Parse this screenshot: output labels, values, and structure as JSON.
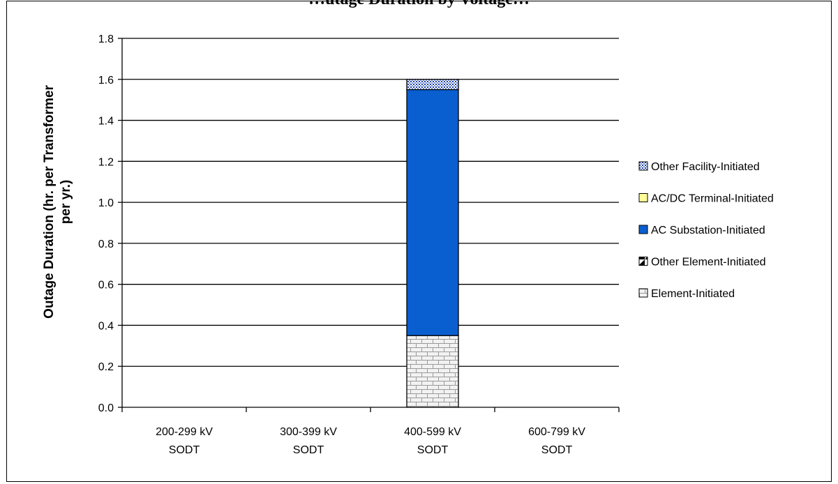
{
  "chart_data": {
    "type": "bar",
    "stacked": true,
    "title": "",
    "title_partial": "…utage Duration by Voltage…",
    "ylabel_lines": [
      "Outage Duration (hr. per Transformer",
      "per  yr.)"
    ],
    "xlabel": "",
    "categories": [
      [
        "200-299 kV",
        "SODT"
      ],
      [
        "300-399 kV",
        "SODT"
      ],
      [
        "400-599 kV",
        "SODT"
      ],
      [
        "600-799 kV",
        "SODT"
      ]
    ],
    "ylim": [
      0,
      1.8
    ],
    "yticks": [
      "0.0",
      "0.2",
      "0.4",
      "0.6",
      "0.8",
      "1.0",
      "1.2",
      "1.4",
      "1.6",
      "1.8"
    ],
    "grid": true,
    "legend_position": "right",
    "series": [
      {
        "name": "Element-Initiated",
        "values": [
          0,
          0,
          0.35,
          0
        ],
        "fill": "#f2f2f2",
        "pattern": "brick"
      },
      {
        "name": "Other Element-Initiated",
        "values": [
          0,
          0,
          0,
          0
        ],
        "fill": "#000000",
        "pattern": "half-diagonal"
      },
      {
        "name": "AC Substation-Initiated",
        "values": [
          0,
          0,
          1.2,
          0
        ],
        "fill": "#0a5fd0",
        "pattern": "solid"
      },
      {
        "name": "AC/DC Terminal-Initiated",
        "values": [
          0,
          0,
          0,
          0
        ],
        "fill": "#ffff99",
        "pattern": "solid"
      },
      {
        "name": "Other Facility-Initiated",
        "values": [
          0,
          0,
          0.05,
          0
        ],
        "fill": "#9db4e0",
        "pattern": "dots"
      }
    ],
    "legend_order": [
      "Other Facility-Initiated",
      "AC/DC Terminal-Initiated",
      "AC Substation-Initiated",
      "Other Element-Initiated",
      "Element-Initiated"
    ]
  }
}
